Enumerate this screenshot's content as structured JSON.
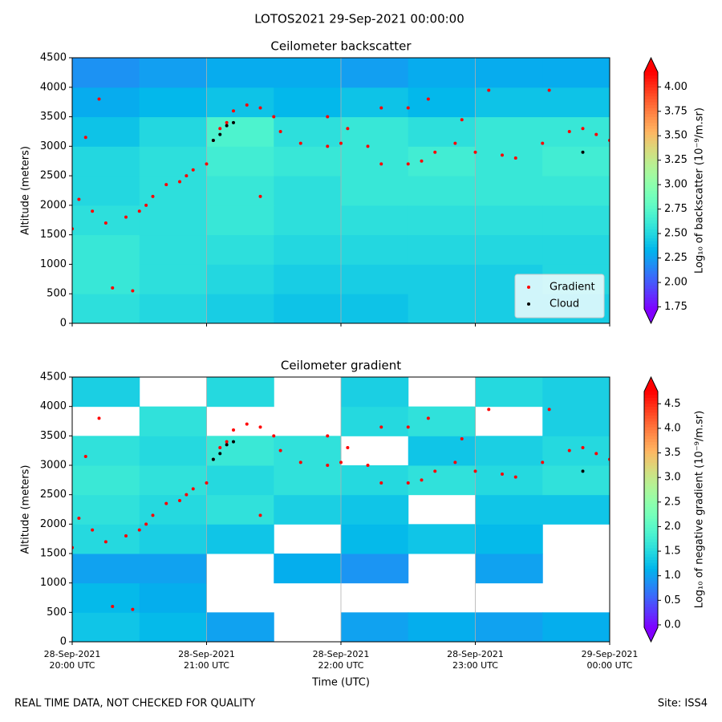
{
  "title": "LOTOS2021 29-Sep-2021 00:00:00",
  "footer_left": "REAL TIME DATA, NOT CHECKED FOR QUALITY",
  "footer_right": "Site: ISS4",
  "chart_data": [
    {
      "type": "heatmap",
      "title": "Ceilometer backscatter",
      "ylabel": "Altitude (meters)",
      "xlim": [
        20,
        24
      ],
      "xticks": [
        20,
        21,
        22,
        23,
        24
      ],
      "show_xtick_labels": false,
      "ylim": [
        0,
        4500
      ],
      "yticks": [
        0,
        500,
        1000,
        1500,
        2000,
        2500,
        3000,
        3500,
        4000,
        4500
      ],
      "vgrid": true,
      "cmap": "rainbow",
      "clim": [
        1.73,
        4.15
      ],
      "xbins": [
        20,
        20.5,
        21,
        21.5,
        22,
        22.5,
        23,
        23.5,
        24
      ],
      "ybins": [
        0,
        500,
        1000,
        1500,
        2000,
        2500,
        3000,
        3500,
        4000,
        4500
      ],
      "z": [
        [
          2.55,
          2.5,
          2.45,
          2.4,
          2.4,
          2.45,
          2.45,
          2.45
        ],
        [
          2.6,
          2.55,
          2.5,
          2.45,
          2.45,
          2.45,
          2.45,
          2.5
        ],
        [
          2.6,
          2.55,
          2.55,
          2.5,
          2.5,
          2.5,
          2.5,
          2.5
        ],
        [
          2.55,
          2.55,
          2.6,
          2.55,
          2.55,
          2.55,
          2.55,
          2.55
        ],
        [
          2.5,
          2.55,
          2.6,
          2.55,
          2.6,
          2.6,
          2.6,
          2.6
        ],
        [
          2.5,
          2.55,
          2.65,
          2.6,
          2.6,
          2.65,
          2.6,
          2.65
        ],
        [
          2.4,
          2.5,
          2.7,
          2.55,
          2.6,
          2.55,
          2.6,
          2.6
        ],
        [
          2.3,
          2.35,
          2.4,
          2.35,
          2.4,
          2.35,
          2.4,
          2.4
        ],
        [
          2.2,
          2.25,
          2.3,
          2.3,
          2.25,
          2.3,
          2.3,
          2.3
        ]
      ],
      "colorbar_label": "Log₁₀ of backscatter (10⁻⁹/m.sr)",
      "colorbar_ticks": [
        1.75,
        {
          "value": 2,
          "label": "2.00"
        },
        2.25,
        {
          "value": 2.5,
          "label": "2.50"
        },
        2.75,
        {
          "value": 3,
          "label": "3.00"
        },
        3.25,
        {
          "value": 3.5,
          "label": "3.50"
        },
        3.75,
        {
          "value": 4,
          "label": "4.00"
        }
      ],
      "legend": "lower right",
      "series": [
        {
          "name": "Gradient",
          "color": "#ff0000",
          "x": [
            20.0,
            20.05,
            20.15,
            20.25,
            20.3,
            20.4,
            20.5,
            20.55,
            20.6,
            20.7,
            20.8,
            20.85,
            20.9,
            21.0,
            21.05,
            21.1,
            21.15,
            21.2,
            21.3,
            21.4,
            21.5,
            21.55,
            21.7,
            21.9,
            22.0,
            22.05,
            22.2,
            22.3,
            22.5,
            22.6,
            22.7,
            22.85,
            22.9,
            23.0,
            23.2,
            23.3,
            23.5,
            23.7,
            23.8,
            23.9,
            24.0,
            20.2,
            20.1,
            21.4,
            21.9,
            22.3,
            22.5,
            22.65,
            23.1,
            23.55,
            20.45
          ],
          "values": [
            1600,
            2100,
            1900,
            1700,
            600,
            1800,
            1900,
            2000,
            2150,
            2350,
            2400,
            2500,
            2600,
            2700,
            3100,
            3300,
            3400,
            3600,
            3700,
            3650,
            3500,
            3250,
            3050,
            3000,
            3050,
            3300,
            3000,
            2700,
            2700,
            2750,
            2900,
            3050,
            3450,
            2900,
            2850,
            2800,
            3050,
            3250,
            3300,
            3200,
            3100,
            3800,
            3150,
            2150,
            3500,
            3650,
            3650,
            3800,
            3950,
            3950,
            550
          ]
        },
        {
          "name": "Cloud",
          "color": "#000000",
          "x": [
            21.05,
            21.1,
            21.15,
            21.2,
            23.8
          ],
          "values": [
            3100,
            3200,
            3350,
            3400,
            2900
          ]
        }
      ]
    },
    {
      "type": "heatmap",
      "title": "Ceilometer gradient",
      "ylabel": "Altitude (meters)",
      "xlabel": "Time (UTC)",
      "xlim": [
        20,
        24
      ],
      "xticks": [
        {
          "value": 20,
          "label": "28-Sep-2021\n20:00 UTC"
        },
        {
          "value": 21,
          "label": "28-Sep-2021\n21:00 UTC"
        },
        {
          "value": 22,
          "label": "28-Sep-2021\n22:00 UTC"
        },
        {
          "value": 23,
          "label": "28-Sep-2021\n23:00 UTC"
        },
        {
          "value": 24,
          "label": "29-Sep-2021\n00:00 UTC"
        }
      ],
      "show_xtick_labels": true,
      "ylim": [
        0,
        4500
      ],
      "yticks": [
        0,
        500,
        1000,
        1500,
        2000,
        2500,
        3000,
        3500,
        4000,
        4500
      ],
      "vgrid": true,
      "cmap": "rainbow",
      "clim": [
        -0.05,
        4.75
      ],
      "xbins": [
        20,
        20.5,
        21,
        21.5,
        22,
        22.5,
        23,
        23.5,
        24
      ],
      "ybins": [
        0,
        500,
        1000,
        1500,
        2000,
        2500,
        3000,
        3500,
        4000,
        4500
      ],
      "z": [
        [
          1.3,
          1.2,
          1.0,
          null,
          1.0,
          1.1,
          1.0,
          1.1
        ],
        [
          1.2,
          1.1,
          null,
          null,
          null,
          null,
          null,
          null
        ],
        [
          1.0,
          1.0,
          null,
          1.1,
          0.9,
          null,
          1.0,
          null
        ],
        [
          1.5,
          1.4,
          1.3,
          null,
          1.2,
          1.3,
          1.2,
          null
        ],
        [
          1.6,
          1.5,
          1.6,
          1.4,
          1.3,
          null,
          1.3,
          1.3
        ],
        [
          1.7,
          1.6,
          1.5,
          1.6,
          1.5,
          1.6,
          1.5,
          1.6
        ],
        [
          1.6,
          1.5,
          1.7,
          1.6,
          null,
          1.3,
          1.4,
          1.5
        ],
        [
          null,
          1.6,
          null,
          null,
          1.5,
          1.6,
          null,
          1.4
        ],
        [
          1.4,
          null,
          1.5,
          null,
          1.4,
          null,
          1.5,
          1.4
        ]
      ],
      "colorbar_label": "Log₁₀ of negative gradient (10⁻⁹/m.sr)",
      "colorbar_ticks": [
        {
          "value": 0,
          "label": "0.0"
        },
        0.5,
        {
          "value": 1,
          "label": "1.0"
        },
        1.5,
        {
          "value": 2,
          "label": "2.0"
        },
        2.5,
        {
          "value": 3,
          "label": "3.0"
        },
        3.5,
        {
          "value": 4,
          "label": "4.0"
        },
        4.5
      ],
      "series": [
        {
          "color": "#ff0000",
          "x": [
            20.0,
            20.05,
            20.15,
            20.25,
            20.3,
            20.4,
            20.5,
            20.55,
            20.6,
            20.7,
            20.8,
            20.85,
            20.9,
            21.0,
            21.05,
            21.1,
            21.15,
            21.2,
            21.3,
            21.4,
            21.5,
            21.55,
            21.7,
            21.9,
            22.0,
            22.05,
            22.2,
            22.3,
            22.5,
            22.6,
            22.7,
            22.85,
            22.9,
            23.0,
            23.2,
            23.3,
            23.5,
            23.7,
            23.8,
            23.9,
            24.0,
            20.2,
            20.1,
            21.4,
            21.9,
            22.3,
            22.5,
            22.65,
            23.1,
            23.55,
            20.45
          ],
          "values": [
            1600,
            2100,
            1900,
            1700,
            600,
            1800,
            1900,
            2000,
            2150,
            2350,
            2400,
            2500,
            2600,
            2700,
            3100,
            3300,
            3400,
            3600,
            3700,
            3650,
            3500,
            3250,
            3050,
            3000,
            3050,
            3300,
            3000,
            2700,
            2700,
            2750,
            2900,
            3050,
            3450,
            2900,
            2850,
            2800,
            3050,
            3250,
            3300,
            3200,
            3100,
            3800,
            3150,
            2150,
            3500,
            3650,
            3650,
            3800,
            3950,
            3950,
            550
          ]
        },
        {
          "color": "#000000",
          "x": [
            21.05,
            21.1,
            21.15,
            21.2,
            23.8
          ],
          "values": [
            3100,
            3200,
            3350,
            3400,
            2900
          ]
        }
      ]
    }
  ]
}
